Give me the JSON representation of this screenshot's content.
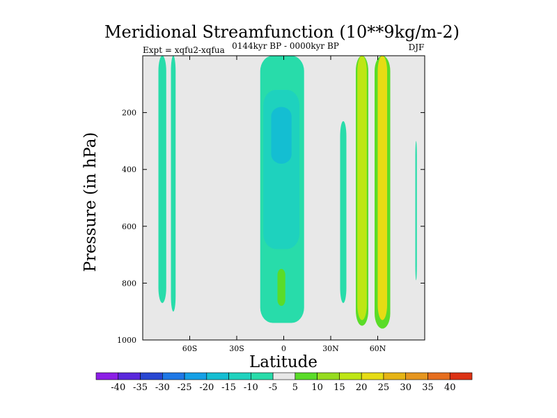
{
  "chart_data": {
    "type": "contour",
    "title": "Meridional Streamfunction (10**9kg/m-2)",
    "experiment_label": "Expt = xqfu2-xqfua",
    "period_label": "0144kyr BP - 0000kyr BP",
    "season_label": "DJF",
    "xlabel": "Latitude",
    "ylabel": "Pressure (in hPa)",
    "xlim": [
      -90,
      90
    ],
    "ylim": [
      1000,
      0
    ],
    "x_ticks": [
      {
        "value": -60,
        "label": "60S"
      },
      {
        "value": -30,
        "label": "30S"
      },
      {
        "value": 0,
        "label": "0"
      },
      {
        "value": 30,
        "label": "30N"
      },
      {
        "value": 60,
        "label": "60N"
      }
    ],
    "y_ticks": [
      {
        "value": 200,
        "label": "200"
      },
      {
        "value": 400,
        "label": "400"
      },
      {
        "value": 600,
        "label": "600"
      },
      {
        "value": 800,
        "label": "800"
      },
      {
        "value": 1000,
        "label": "1000"
      }
    ],
    "background_color": "#e8e8e8",
    "colorbar": {
      "levels": [
        -40,
        -35,
        -30,
        -25,
        -20,
        -15,
        -10,
        -5,
        5,
        10,
        15,
        20,
        25,
        30,
        35,
        40
      ],
      "labels": [
        "-40",
        "-35",
        "-30",
        "-25",
        "-20",
        "-15",
        "-10",
        "-5",
        "5",
        "10",
        "15",
        "20",
        "25",
        "30",
        "35",
        "40"
      ],
      "colors": [
        "#8c1ee6",
        "#5a28dc",
        "#2846d2",
        "#1e78e6",
        "#14a0e6",
        "#14bed2",
        "#1ed2be",
        "#28dcaa",
        "#e8e8e8",
        "#5adc28",
        "#96dc1e",
        "#bee614",
        "#e6dc14",
        "#e6b414",
        "#e6961e",
        "#e66e1e",
        "#dc3214"
      ]
    },
    "regions": [
      {
        "name": "sh-high-lat-negative-column",
        "value_range": [
          -10,
          -5
        ],
        "lat_range": [
          -80,
          -75
        ],
        "p_range": [
          0,
          870
        ]
      },
      {
        "name": "sh-negative-column-2",
        "value_range": [
          -10,
          -5
        ],
        "lat_range": [
          -72,
          -69
        ],
        "p_range": [
          0,
          900
        ]
      },
      {
        "name": "tropical-negative-cell-outer",
        "value_range": [
          -10,
          -5
        ],
        "lat_range": [
          -15,
          13
        ],
        "p_range": [
          0,
          940
        ]
      },
      {
        "name": "tropical-negative-cell-mid",
        "value_range": [
          -15,
          -10
        ],
        "lat_range": [
          -13,
          10
        ],
        "p_range": [
          120,
          680
        ]
      },
      {
        "name": "tropical-negative-cell-core",
        "value_range": [
          -20,
          -15
        ],
        "lat_range": [
          -8,
          5
        ],
        "p_range": [
          180,
          380
        ]
      },
      {
        "name": "small-positive-patch",
        "value_range": [
          5,
          10
        ],
        "lat_range": [
          -4,
          1
        ],
        "p_range": [
          750,
          880
        ]
      },
      {
        "name": "nh-positive-column-1-outer",
        "value_range": [
          5,
          10
        ],
        "lat_range": [
          46,
          54
        ],
        "p_range": [
          0,
          950
        ]
      },
      {
        "name": "nh-positive-column-1-inner",
        "value_range": [
          10,
          20
        ],
        "lat_range": [
          47,
          53
        ],
        "p_range": [
          0,
          930
        ]
      },
      {
        "name": "nh-positive-column-2-outer",
        "value_range": [
          5,
          10
        ],
        "lat_range": [
          58,
          68
        ],
        "p_range": [
          0,
          960
        ]
      },
      {
        "name": "nh-positive-column-2-inner",
        "value_range": [
          15,
          25
        ],
        "lat_range": [
          60,
          66
        ],
        "p_range": [
          0,
          930
        ]
      },
      {
        "name": "nh-subtropical-negative-column",
        "value_range": [
          -10,
          -5
        ],
        "lat_range": [
          36,
          40
        ],
        "p_range": [
          230,
          870
        ]
      },
      {
        "name": "nh-high-lat-negative-column",
        "value_range": [
          -10,
          -5
        ],
        "lat_range": [
          84,
          85
        ],
        "p_range": [
          300,
          790
        ]
      }
    ]
  }
}
